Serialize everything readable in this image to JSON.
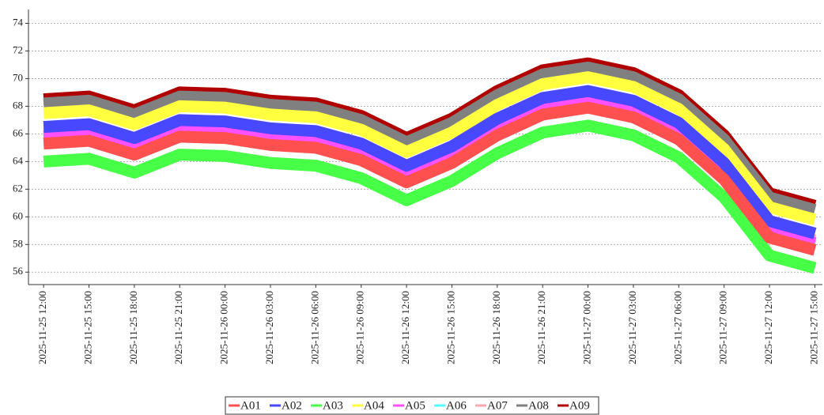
{
  "chart_data": {
    "type": "line",
    "x": [
      "2025-11-25 12:00",
      "2025-11-25 15:00",
      "2025-11-25 18:00",
      "2025-11-25 21:00",
      "2025-11-26 00:00",
      "2025-11-26 03:00",
      "2025-11-26 06:00",
      "2025-11-26 09:00",
      "2025-11-26 12:00",
      "2025-11-26 15:00",
      "2025-11-26 18:00",
      "2025-11-26 21:00",
      "2025-11-27 00:00",
      "2025-11-27 03:00",
      "2025-11-27 06:00",
      "2025-11-27 09:00",
      "2025-11-27 12:00",
      "2025-11-27 15:00"
    ],
    "series": [
      {
        "name": "A01",
        "color": "#ff5050",
        "values": [
          65.3,
          65.5,
          64.5,
          65.8,
          65.7,
          65.2,
          65.0,
          64.1,
          62.5,
          63.9,
          65.9,
          67.4,
          67.9,
          67.2,
          65.6,
          62.7,
          58.5,
          57.6
        ]
      },
      {
        "name": "A02",
        "color": "#4848ff",
        "values": [
          66.5,
          66.7,
          65.7,
          67.0,
          66.9,
          66.4,
          66.2,
          65.3,
          63.7,
          65.1,
          67.1,
          68.6,
          69.1,
          68.4,
          66.8,
          63.9,
          59.7,
          58.8
        ]
      },
      {
        "name": "A03",
        "color": "#48ff48",
        "values": [
          64.0,
          64.2,
          63.2,
          64.5,
          64.4,
          63.9,
          63.7,
          62.8,
          61.2,
          62.6,
          64.6,
          66.1,
          66.6,
          65.9,
          64.3,
          61.4,
          57.2,
          56.3
        ]
      },
      {
        "name": "A04",
        "color": "#ffff40",
        "values": [
          67.5,
          67.7,
          66.7,
          68.0,
          67.9,
          67.4,
          67.2,
          66.3,
          64.7,
          66.1,
          68.1,
          69.6,
          70.1,
          69.4,
          67.8,
          64.9,
          60.7,
          59.8
        ]
      },
      {
        "name": "A05",
        "color": "#ff50ff",
        "values": [
          65.8,
          66.0,
          65.0,
          66.3,
          66.2,
          65.7,
          65.5,
          64.6,
          63.0,
          64.4,
          66.4,
          67.9,
          68.4,
          67.7,
          66.1,
          63.2,
          59.0,
          58.1
        ]
      },
      {
        "name": "A06",
        "color": "#50ffff",
        "values": [
          65.6,
          65.8,
          64.8,
          66.1,
          66.0,
          65.5,
          65.3,
          64.4,
          62.8,
          64.2,
          66.2,
          67.7,
          68.2,
          67.5,
          65.9,
          63.0,
          58.8,
          57.9
        ]
      },
      {
        "name": "A07",
        "color": "#ffa8b0",
        "values": [
          66.0,
          66.2,
          65.2,
          66.5,
          66.4,
          65.9,
          65.7,
          64.8,
          63.2,
          64.6,
          66.6,
          68.1,
          68.6,
          67.9,
          66.3,
          63.4,
          59.2,
          58.3
        ]
      },
      {
        "name": "A08",
        "color": "#808080",
        "values": [
          68.2,
          68.4,
          67.4,
          68.7,
          68.6,
          68.1,
          67.9,
          67.0,
          65.4,
          66.8,
          68.8,
          70.3,
          70.8,
          70.1,
          68.5,
          65.6,
          61.4,
          60.5
        ]
      },
      {
        "name": "A09",
        "color": "#b00000",
        "values": [
          68.5,
          68.7,
          67.7,
          69.0,
          68.9,
          68.4,
          68.2,
          67.3,
          65.7,
          67.1,
          69.1,
          70.6,
          71.1,
          70.4,
          68.8,
          65.9,
          61.7,
          60.8
        ]
      }
    ],
    "xlim": [
      "2025-11-25 11:00",
      "2025-11-27 15:30"
    ],
    "ylim": [
      55.1,
      75
    ],
    "yticks": [
      56,
      58,
      60,
      62,
      64,
      66,
      68,
      70,
      72,
      74
    ],
    "grid": true,
    "legend": "bottom"
  }
}
